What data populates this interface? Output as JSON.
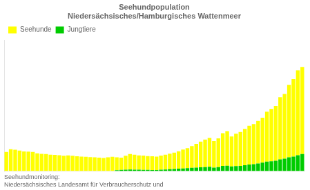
{
  "chart_data": {
    "type": "bar",
    "title": "Seehundpopulation\nNiedersächsisches/Hamburgisches Wattenmeer",
    "annotation": "Seehundmonitoring:\nNiedersächsisches Landesamt für Verbraucherschutz und",
    "categories": [
      null,
      null,
      null,
      null,
      null,
      null,
      null,
      null,
      null,
      null,
      null,
      null,
      null,
      null,
      null,
      null,
      null,
      null,
      null,
      null,
      null,
      null,
      null,
      null,
      null,
      null,
      null,
      null,
      null,
      null,
      null,
      null,
      null,
      null,
      null,
      null,
      null,
      null,
      null,
      null,
      null,
      null,
      null,
      null,
      null,
      null,
      null,
      null,
      null,
      null,
      null,
      null,
      null,
      null,
      null,
      null,
      null,
      null,
      null,
      null,
      null,
      null,
      null,
      null,
      null,
      null,
      null,
      null
    ],
    "series": [
      {
        "name": "Jungtiere",
        "color": "#00CC00",
        "values": [
          0,
          0,
          0,
          0,
          0,
          0,
          0,
          0,
          0,
          0,
          0,
          0,
          0,
          0,
          0,
          0,
          0,
          0,
          0,
          0,
          0,
          0,
          0,
          0,
          0,
          30,
          40,
          50,
          55,
          50,
          45,
          40,
          40,
          38,
          35,
          45,
          55,
          65,
          75,
          85,
          95,
          105,
          115,
          125,
          135,
          145,
          155,
          125,
          140,
          185,
          195,
          165,
          180,
          190,
          215,
          240,
          250,
          275,
          305,
          345,
          360,
          375,
          430,
          455,
          500,
          530,
          580,
          620
        ]
      },
      {
        "name": "Seehunde",
        "color": "#FFFF00",
        "values": [
          700,
          800,
          780,
          750,
          720,
          710,
          700,
          650,
          630,
          620,
          600,
          590,
          580,
          560,
          570,
          560,
          540,
          530,
          520,
          510,
          500,
          490,
          480,
          500,
          520,
          470,
          450,
          510,
          570,
          550,
          530,
          525,
          510,
          500,
          495,
          520,
          545,
          570,
          600,
          640,
          690,
          730,
          800,
          870,
          940,
          1010,
          1060,
          970,
          1060,
          1200,
          1270,
          1100,
          1190,
          1240,
          1330,
          1420,
          1470,
          1560,
          1650,
          1830,
          1920,
          2010,
          2280,
          2370,
          2660,
          2840,
          3110,
          3200
        ]
      }
    ],
    "stacked": true,
    "ylim": [
      0,
      4800
    ],
    "grid": false,
    "legend": "upper left",
    "tick_labels": false
  }
}
